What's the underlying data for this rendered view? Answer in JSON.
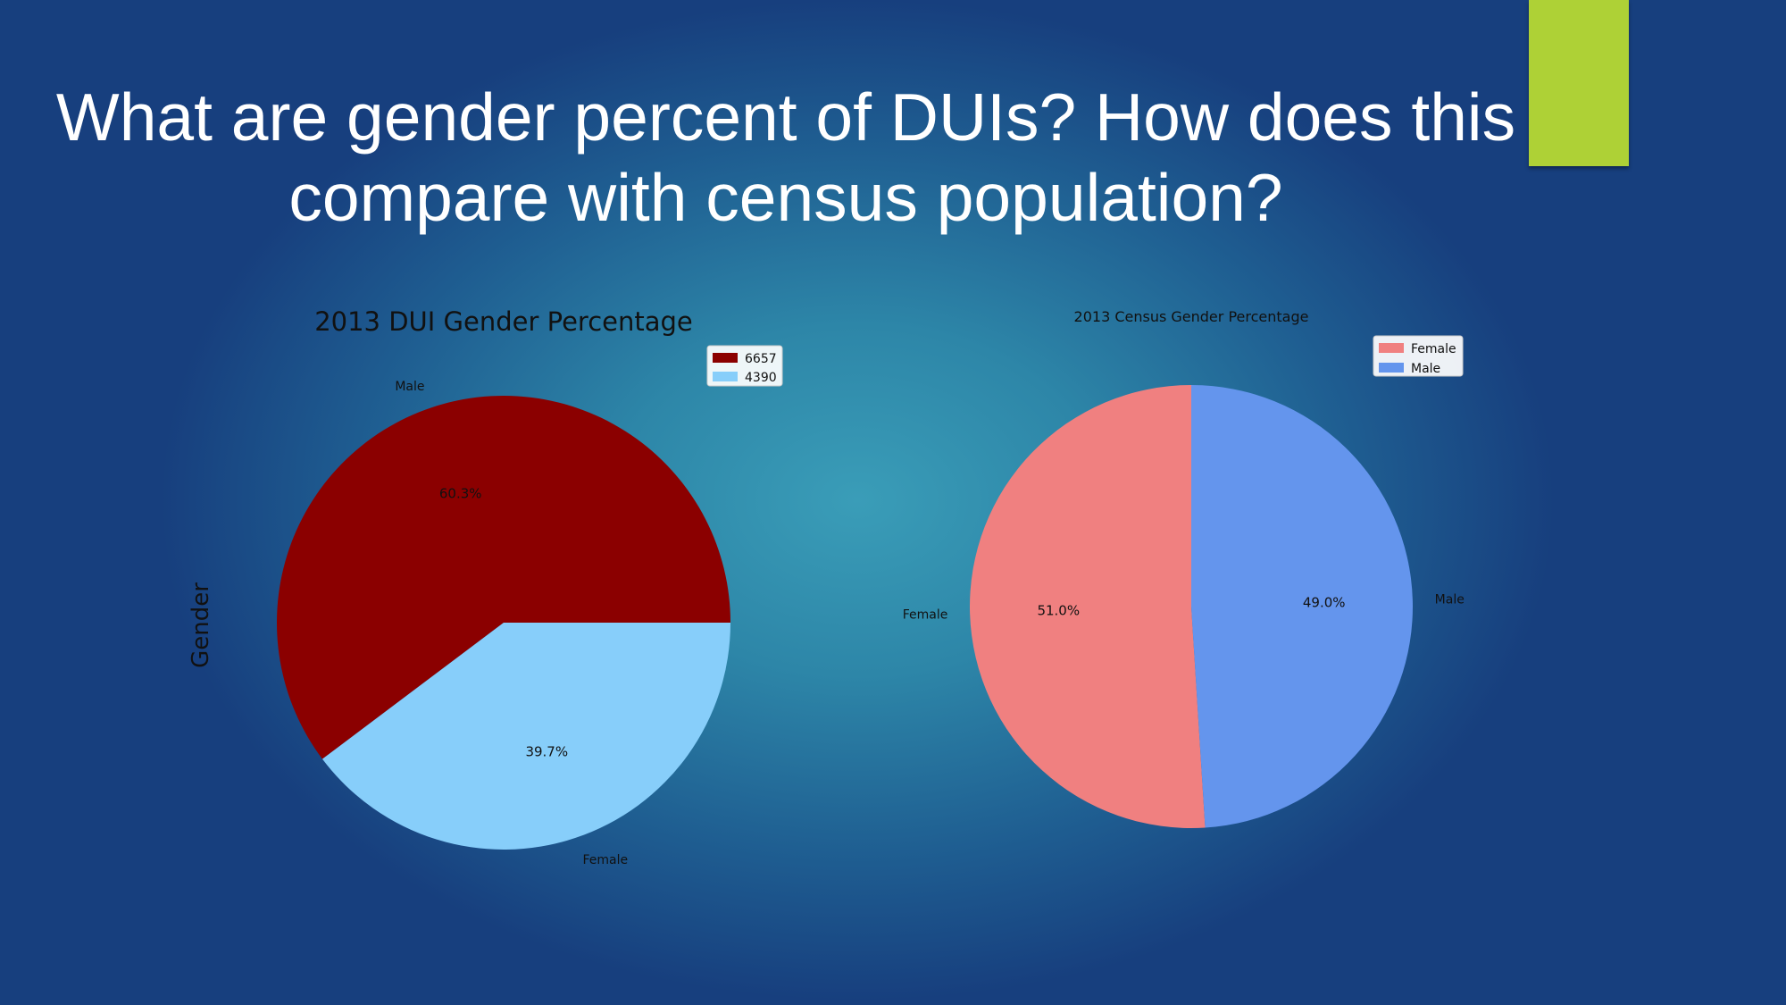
{
  "slide": {
    "title": "What are gender percent of DUIs? How does this compare with census population?",
    "accent_color": "#aed136"
  },
  "chart_data": [
    {
      "type": "pie",
      "title": "2013 DUI Gender Percentage",
      "ylabel": "Gender",
      "slices": [
        {
          "label": "Male",
          "value": 6657,
          "percent_label": "60.3%",
          "color": "#8b0000"
        },
        {
          "label": "Female",
          "value": 4390,
          "percent_label": "39.7%",
          "color": "#87cefa"
        }
      ],
      "legend": {
        "entries": [
          "6657",
          "4390"
        ],
        "position": "upper-right"
      },
      "start_angle_deg": 0,
      "direction": "counterclockwise"
    },
    {
      "type": "pie",
      "title": "2013 Census Gender Percentage",
      "slices": [
        {
          "label": "Female",
          "value": 51.0,
          "percent_label": "51.0%",
          "color": "#f08080"
        },
        {
          "label": "Male",
          "value": 49.0,
          "percent_label": "49.0%",
          "color": "#6495ed"
        }
      ],
      "legend": {
        "entries": [
          "Female",
          "Male"
        ],
        "position": "upper-right"
      },
      "start_angle_deg": 90,
      "direction": "counterclockwise"
    }
  ]
}
